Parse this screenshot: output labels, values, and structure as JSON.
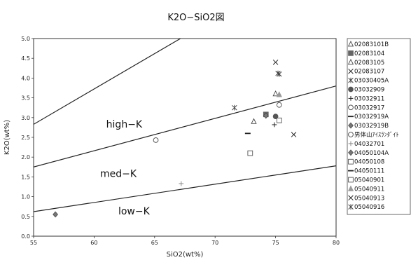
{
  "chart_data": {
    "type": "scatter",
    "title": "K2O−SiO2図",
    "xlabel": "SiO2(wt%)",
    "ylabel": "K2O(wt%)",
    "xlim": [
      55,
      80
    ],
    "ylim": [
      0,
      5
    ],
    "x_ticks": [
      55,
      60,
      65,
      70,
      75,
      80
    ],
    "x_tick_labels": [
      "55",
      "60",
      "65",
      "70",
      "75",
      "80"
    ],
    "y_ticks": [
      0,
      0.5,
      1,
      1.5,
      2,
      2.5,
      3,
      3.5,
      4,
      4.5,
      5
    ],
    "y_tick_labels": [
      "0.0",
      "0.5",
      "1.0",
      "1.5",
      "2.0",
      "2.5",
      "3.0",
      "3.5",
      "4.0",
      "4.5",
      "5.0"
    ],
    "grid": false,
    "legend_position": "right",
    "boundary_lines": [
      {
        "x": [
          55,
          80
        ],
        "y": [
          2.83,
          7.3
        ]
      },
      {
        "x": [
          55,
          80
        ],
        "y": [
          1.75,
          3.8
        ]
      },
      {
        "x": [
          55,
          80
        ],
        "y": [
          0.62,
          1.78
        ]
      }
    ],
    "region_labels": [
      {
        "text": "high−K",
        "x": 61.0,
        "y": 2.75
      },
      {
        "text": "med−K",
        "x": 60.5,
        "y": 1.5
      },
      {
        "text": "low−K",
        "x": 62.0,
        "y": 0.55
      }
    ],
    "series": [
      {
        "name": "02083101B",
        "marker": "triangle-open",
        "color": "#444444",
        "points": [
          [
            73.2,
            2.9
          ]
        ]
      },
      {
        "name": "02083104",
        "marker": "square-filled",
        "color": "#666666",
        "points": [
          [
            74.2,
            3.08
          ]
        ]
      },
      {
        "name": "02083105",
        "marker": "triangle-open",
        "color": "#444444",
        "points": [
          [
            75.0,
            3.6
          ]
        ]
      },
      {
        "name": "02083107",
        "marker": "x",
        "color": "#222222",
        "points": [
          [
            75.0,
            4.4
          ]
        ]
      },
      {
        "name": "03030405A",
        "marker": "asterisk",
        "color": "#444444",
        "points": [
          [
            71.6,
            3.25
          ],
          [
            75.3,
            4.1
          ]
        ]
      },
      {
        "name": "03032909",
        "marker": "circle-filled",
        "color": "#555555",
        "points": [
          [
            75.0,
            3.03
          ]
        ]
      },
      {
        "name": "03032911",
        "marker": "plus",
        "color": "#222222",
        "points": [
          [
            74.9,
            2.82
          ]
        ]
      },
      {
        "name": "03032917",
        "marker": "circle-open",
        "color": "#444444",
        "points": [
          [
            65.1,
            2.43
          ],
          [
            75.3,
            3.32
          ]
        ]
      },
      {
        "name": "03032919A",
        "marker": "dash",
        "color": "#222222",
        "points": [
          [
            72.7,
            2.6
          ]
        ]
      },
      {
        "name": "03032919B",
        "marker": "diamond-filled",
        "color": "#777777",
        "points": [
          [
            74.2,
            3.05
          ]
        ]
      },
      {
        "name": "男体山ｱｲｽﾗﾝﾀﾞｲﾄ",
        "marker": "circle-open",
        "color": "#444444",
        "points": []
      },
      {
        "name": "04032701",
        "marker": "plus",
        "color": "#888888",
        "points": [
          [
            67.2,
            1.33
          ]
        ]
      },
      {
        "name": "04050104A",
        "marker": "diamond-filled",
        "color": "#777777",
        "points": [
          [
            56.8,
            0.55
          ]
        ]
      },
      {
        "name": "04050108",
        "marker": "square-open",
        "color": "#555555",
        "points": [
          [
            72.9,
            2.1
          ]
        ]
      },
      {
        "name": "04050111",
        "marker": "dash",
        "color": "#222222",
        "points": []
      },
      {
        "name": "05040901",
        "marker": "square-open",
        "color": "#555555",
        "points": [
          [
            75.3,
            2.93
          ]
        ]
      },
      {
        "name": "05040911",
        "marker": "triangle-filled",
        "color": "#999999",
        "points": [
          [
            75.3,
            3.58
          ]
        ]
      },
      {
        "name": "05040913",
        "marker": "x",
        "color": "#222222",
        "points": [
          [
            76.5,
            2.57
          ]
        ]
      },
      {
        "name": "05040916",
        "marker": "asterisk",
        "color": "#444444",
        "points": [
          [
            75.2,
            4.12
          ]
        ]
      }
    ]
  }
}
